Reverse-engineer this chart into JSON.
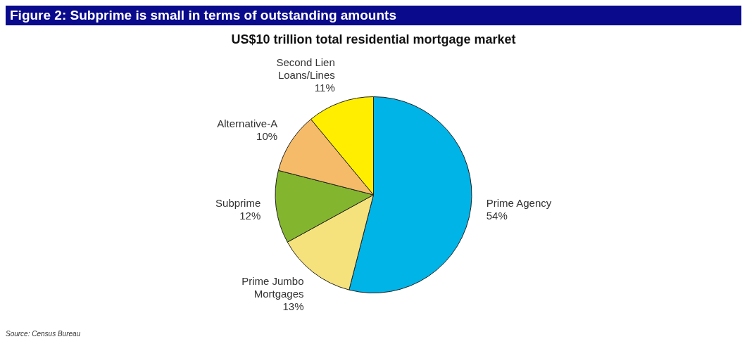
{
  "chart_data": {
    "type": "pie",
    "title": "Figure 2: Subprime is small in terms of outstanding amounts",
    "subtitle": "US$10 trillion total residential mortgage market",
    "categories": [
      "Prime Agency",
      "Prime Jumbo Mortgages",
      "Subprime",
      "Alternative-A",
      "Second Lien Loans/Lines"
    ],
    "values": [
      54,
      13,
      12,
      10,
      11
    ],
    "value_labels": [
      "54%",
      "13%",
      "12%",
      "10%",
      "11%"
    ],
    "colors": [
      "#00b4e8",
      "#f6e27c",
      "#84b52e",
      "#f5bb68",
      "#ffee00"
    ],
    "legend": false,
    "annotations": [
      "Source: Census Bureau"
    ]
  }
}
